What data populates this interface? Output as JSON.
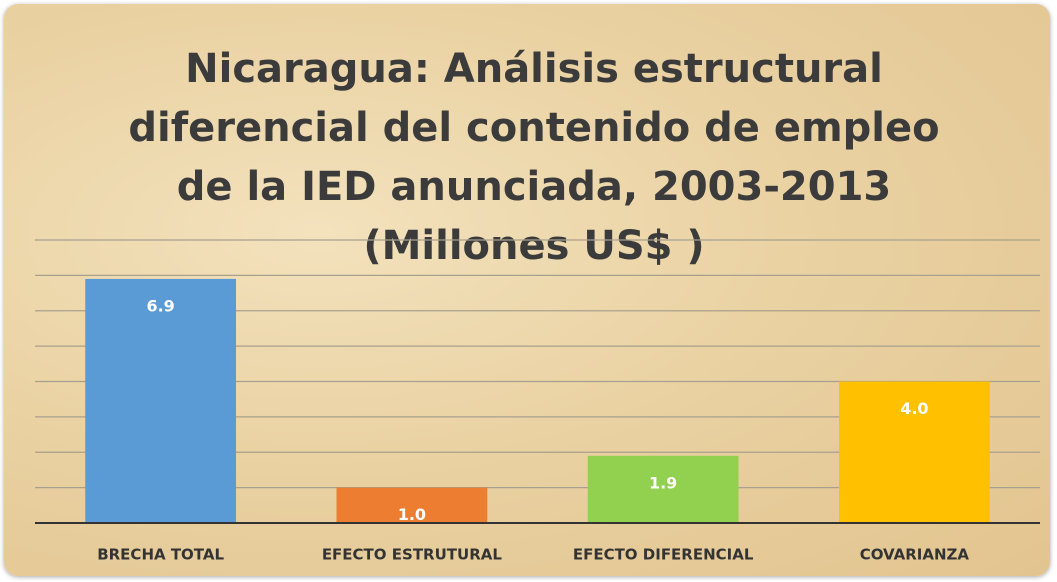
{
  "chart_data": {
    "type": "bar",
    "title": "Nicaragua: Análisis estructural diferencial del contenido de empleo de la IED anunciada, 2003-2013 (Millones US$ )",
    "categories": [
      "BRECHA TOTAL",
      "EFECTO ESTRUTURAL",
      "EFECTO DIFERENCIAL",
      "COVARIANZA"
    ],
    "values": [
      6.9,
      1.0,
      1.9,
      4.0
    ],
    "value_labels": [
      "6.9",
      "1.0",
      "1.9",
      "4.0"
    ],
    "colors": [
      "#5b9bd5",
      "#ed7d31",
      "#92d050",
      "#ffc000"
    ],
    "ylim": [
      0,
      8
    ],
    "yticks": [
      0,
      1,
      2,
      3,
      4,
      5,
      6,
      7,
      8
    ],
    "grid": true
  }
}
